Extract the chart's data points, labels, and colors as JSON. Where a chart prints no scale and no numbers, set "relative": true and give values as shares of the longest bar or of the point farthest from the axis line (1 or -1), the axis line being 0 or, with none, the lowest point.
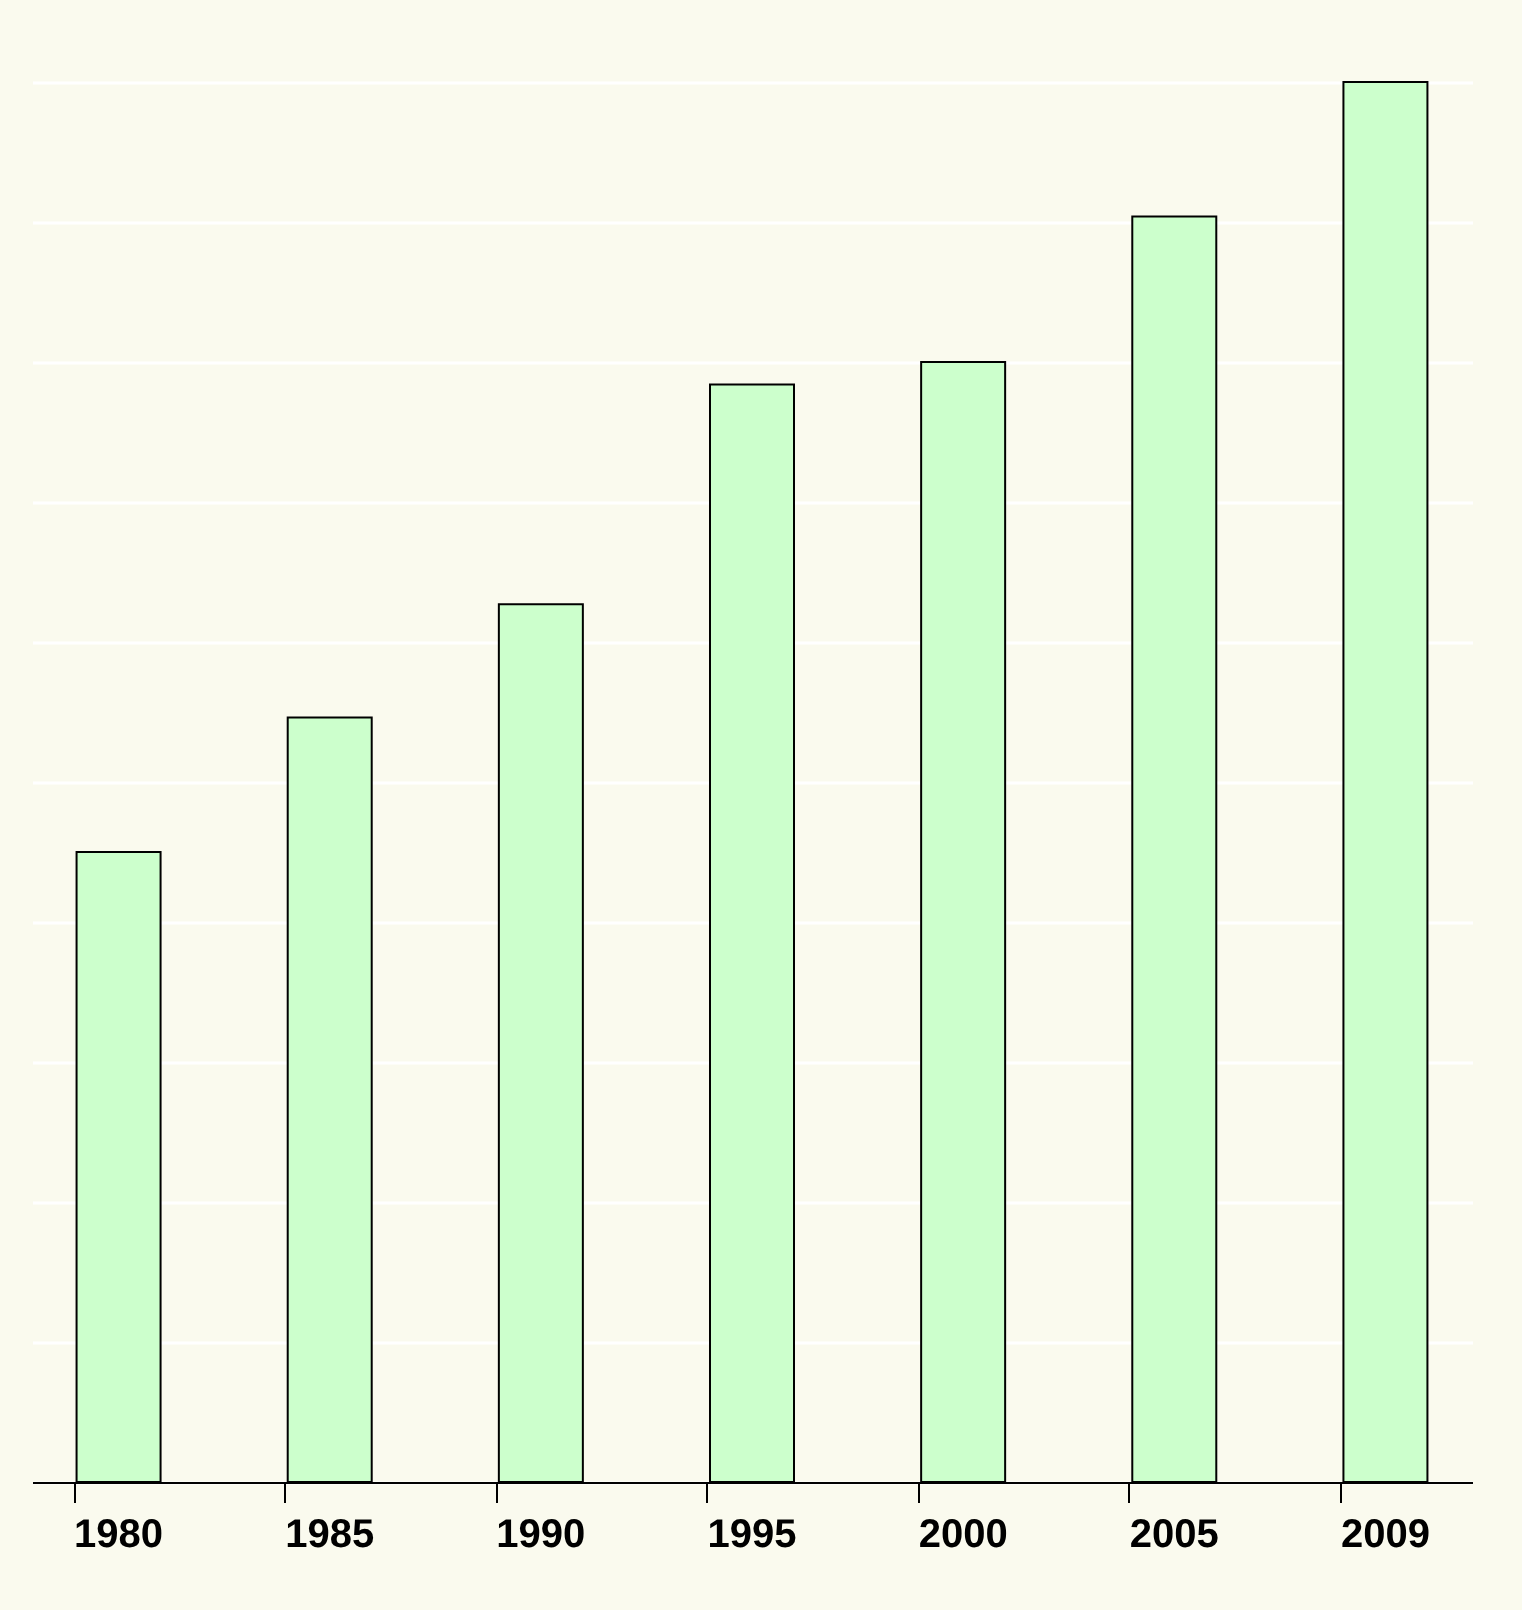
{
  "chart_data": {
    "type": "bar",
    "relative": true,
    "categories": [
      "1980",
      "1985",
      "1990",
      "1995",
      "2000",
      "2005",
      "2009"
    ],
    "values": [
      0.45,
      0.546,
      0.627,
      0.784,
      0.8,
      0.904,
      1
    ],
    "color": "#ccffcc",
    "grid": "y"
  }
}
